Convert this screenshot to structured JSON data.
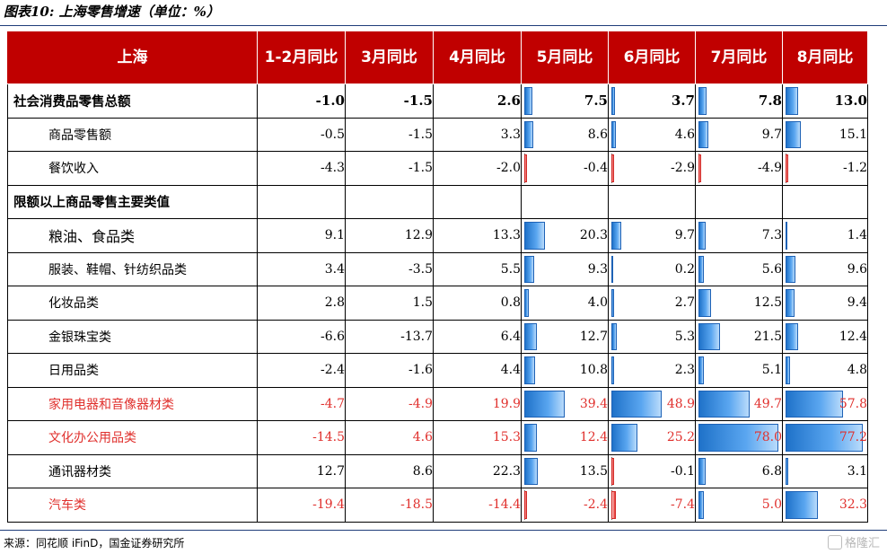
{
  "title": "图表10: 上海零售增速（单位：%）",
  "header": {
    "region": "上海",
    "columns": [
      "1-2月同比",
      "3月同比",
      "4月同比",
      "5月同比",
      "6月同比",
      "7月同比",
      "8月同比"
    ]
  },
  "rows": [
    {
      "label": "社会消费品零售总额",
      "values": [
        "-1.0",
        "-1.5",
        "2.6",
        "7.5",
        "3.7",
        "7.8",
        "13.0"
      ]
    },
    {
      "label": "商品零售额",
      "values": [
        "-0.5",
        "-1.5",
        "3.3",
        "8.6",
        "4.6",
        "9.7",
        "15.1"
      ]
    },
    {
      "label": "餐饮收入",
      "values": [
        "-4.3",
        "-1.5",
        "-2.0",
        "-0.4",
        "-2.9",
        "-4.9",
        "-1.2"
      ]
    },
    {
      "label": "限额以上商品零售主要类值",
      "values": [
        "",
        "",
        "",
        "",
        "",
        "",
        ""
      ]
    },
    {
      "label": "粮油、食品类",
      "values": [
        "9.1",
        "12.9",
        "13.3",
        "20.3",
        "9.7",
        "7.3",
        "1.4"
      ]
    },
    {
      "label": "服装、鞋帽、针纺织品类",
      "values": [
        "3.4",
        "-3.5",
        "5.5",
        "9.3",
        "0.2",
        "5.6",
        "9.6"
      ]
    },
    {
      "label": "化妆品类",
      "values": [
        "2.8",
        "1.5",
        "0.8",
        "4.0",
        "2.7",
        "12.5",
        "9.4"
      ]
    },
    {
      "label": "金银珠宝类",
      "values": [
        "-6.6",
        "-13.7",
        "6.4",
        "12.7",
        "5.3",
        "21.5",
        "12.4"
      ]
    },
    {
      "label": "日用品类",
      "values": [
        "-2.4",
        "-1.6",
        "4.4",
        "10.8",
        "2.3",
        "5.1",
        "4.8"
      ]
    },
    {
      "label": "家用电器和音像器材类",
      "values": [
        "-4.7",
        "-4.9",
        "19.9",
        "39.4",
        "48.9",
        "49.7",
        "57.8"
      ]
    },
    {
      "label": "文化办公用品类",
      "values": [
        "-14.5",
        "4.6",
        "15.3",
        "12.4",
        "25.2",
        "78.0",
        "77.2"
      ]
    },
    {
      "label": "通讯器材类",
      "values": [
        "12.7",
        "8.6",
        "22.3",
        "13.5",
        "-0.1",
        "6.8",
        "3.1"
      ]
    },
    {
      "label": "汽车类",
      "values": [
        "-19.4",
        "-18.5",
        "-14.4",
        "-2.4",
        "-7.4",
        "5.0",
        "32.3"
      ]
    }
  ],
  "highlighted_rows": [
    "家用电器和音像器材类",
    "文化办公用品类",
    "汽车类"
  ],
  "colors": {
    "header_bg": "#c00000",
    "highlight_text": "#e0302d",
    "bar_positive": "#1f72c9",
    "bar_negative": "#e8322e"
  },
  "source": "来源：同花顺 iFinD，国金证券研究所",
  "watermark": "格隆汇"
}
